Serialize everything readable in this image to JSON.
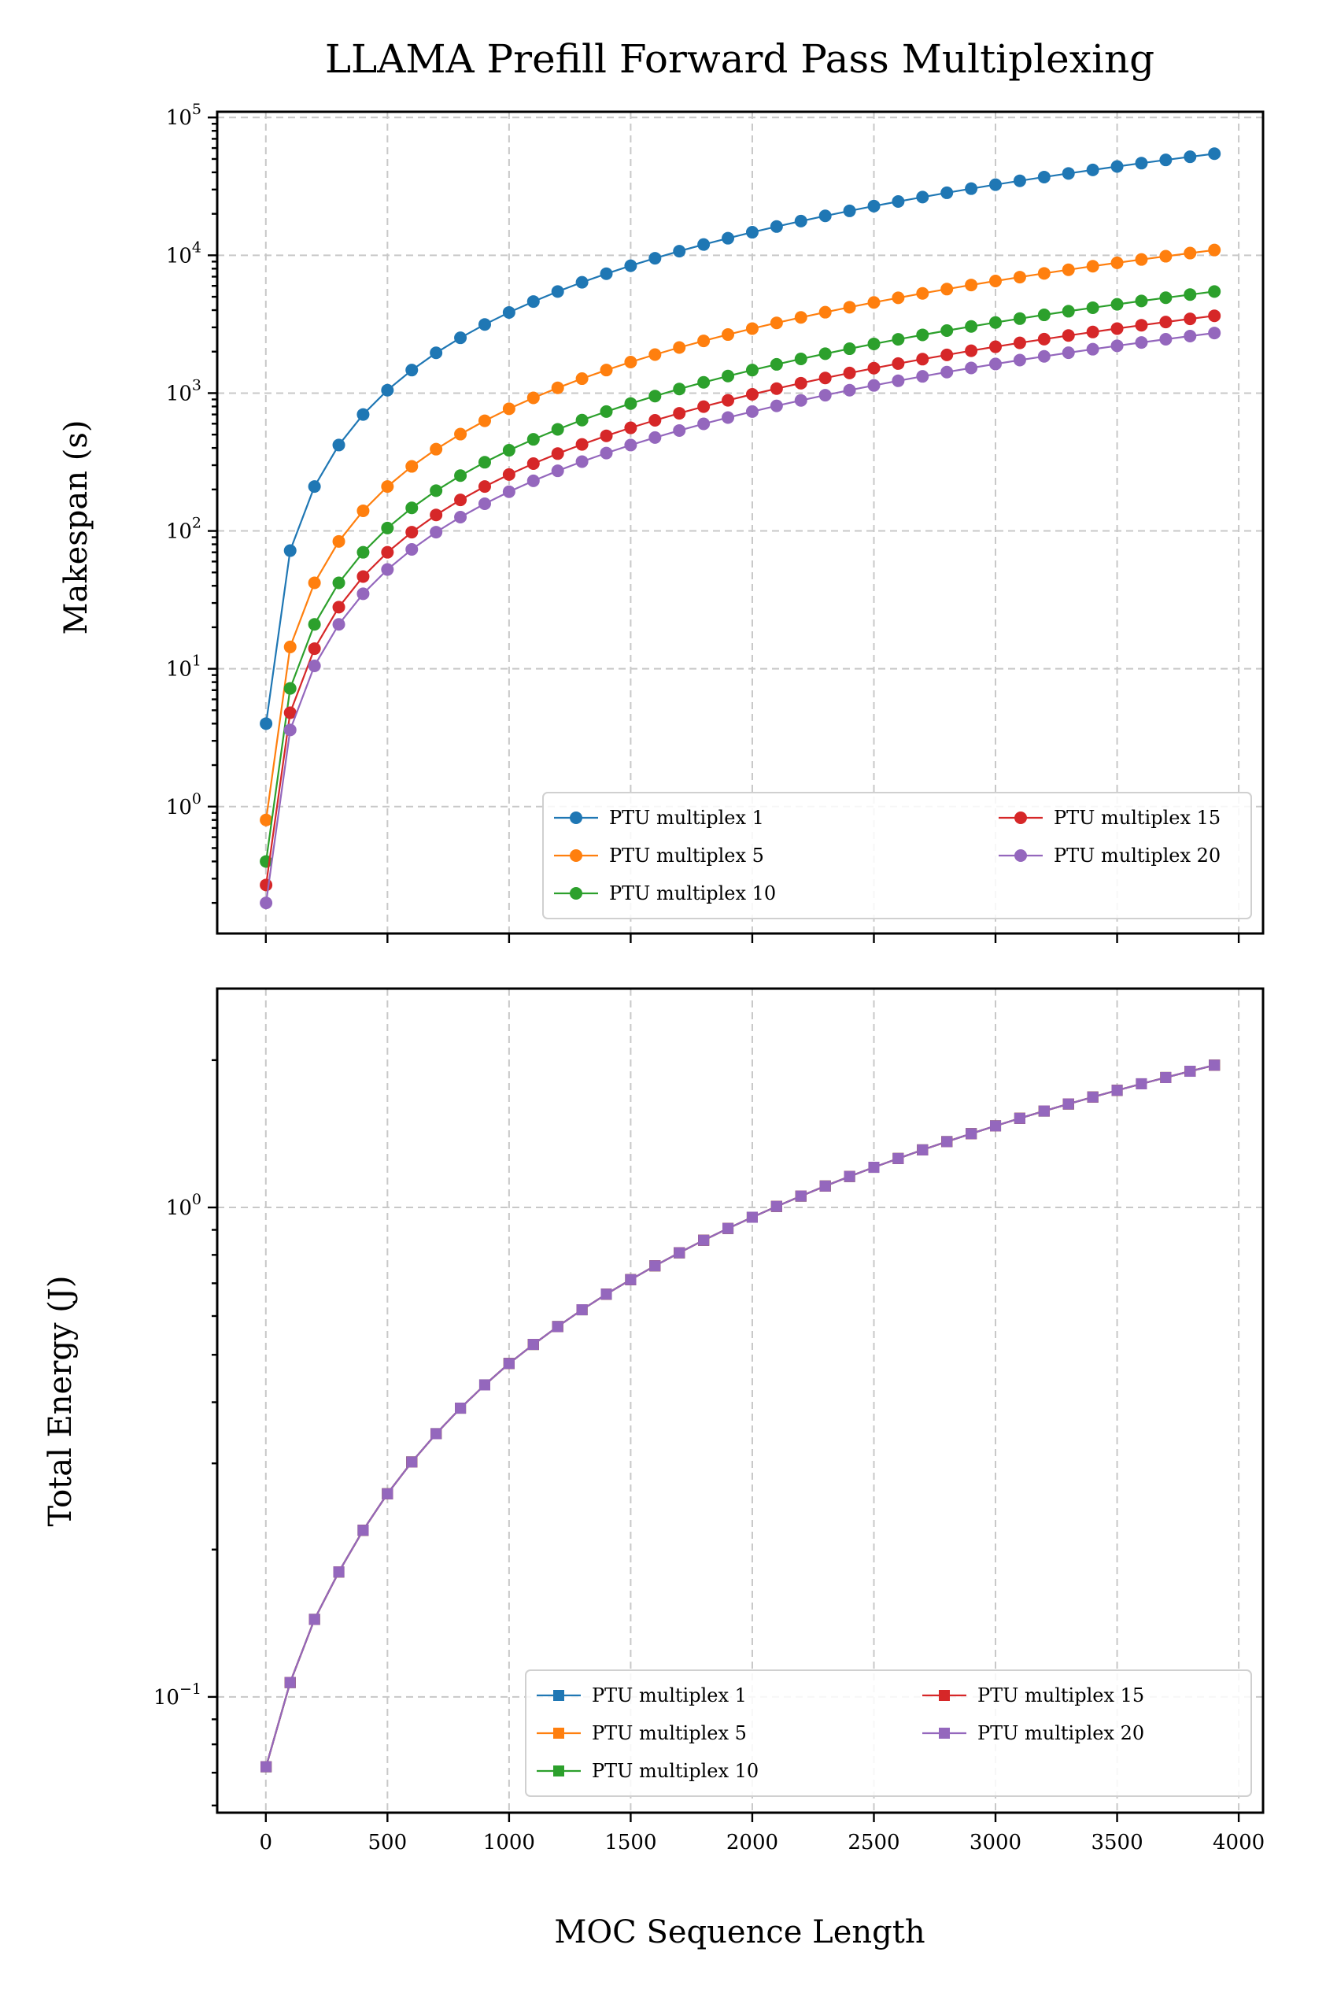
{
  "chart_data": [
    {
      "type": "line",
      "title": "LLAMA Prefill Forward Pass Multiplexing",
      "ylabel": "Makespan (s)",
      "xlabel": "",
      "yscale": "log",
      "ylim": [
        0.12,
        110000
      ],
      "xlim": [
        -200,
        4100
      ],
      "grid": true,
      "legend_position": "lower-right",
      "marker": "circle",
      "x_ticks": [
        0,
        500,
        1000,
        1500,
        2000,
        2500,
        3000,
        3500,
        4000
      ],
      "y_ticks": [
        {
          "value": 1,
          "base": "10",
          "exp": "0"
        },
        {
          "value": 10,
          "base": "10",
          "exp": "1"
        },
        {
          "value": 100,
          "base": "10",
          "exp": "2"
        },
        {
          "value": 1000,
          "base": "10",
          "exp": "3"
        },
        {
          "value": 10000,
          "base": "10",
          "exp": "4"
        },
        {
          "value": 100000,
          "base": "10",
          "exp": "5"
        }
      ],
      "x": [
        1,
        100,
        200,
        300,
        400,
        500,
        600,
        700,
        800,
        900,
        1000,
        1100,
        1200,
        1300,
        1400,
        1500,
        1600,
        1700,
        1800,
        1900,
        2000,
        2100,
        2200,
        2300,
        2400,
        2500,
        2600,
        2700,
        2800,
        2900,
        3000,
        3100,
        3200,
        3300,
        3400,
        3500,
        3600,
        3700,
        3800,
        3900
      ],
      "series": [
        {
          "name": "PTU multiplex 1",
          "color": "#1f77b4",
          "values": [
            4,
            72,
            210,
            420,
            700,
            1050,
            1470,
            1960,
            2520,
            3150,
            3850,
            4620,
            5460,
            6370,
            7350,
            8400,
            9520,
            10710,
            11970,
            13300,
            14700,
            16170,
            17710,
            19320,
            21000,
            22750,
            24570,
            26460,
            28420,
            30450,
            32550,
            34720,
            36960,
            39270,
            41650,
            44100,
            46620,
            49210,
            51870,
            54600
          ]
        },
        {
          "name": "PTU multiplex 5",
          "color": "#ff7f0e",
          "values": [
            0.8,
            14.4,
            42,
            84,
            140,
            210,
            294,
            392,
            504,
            630,
            770,
            924,
            1092,
            1274,
            1470,
            1680,
            1904,
            2142,
            2394,
            2660,
            2940,
            3234,
            3542,
            3864,
            4200,
            4550,
            4914,
            5292,
            5684,
            6090,
            6510,
            6944,
            7392,
            7854,
            8330,
            8820,
            9324,
            9842,
            10374,
            10920
          ]
        },
        {
          "name": "PTU multiplex 10",
          "color": "#2ca02c",
          "values": [
            0.4,
            7.2,
            21,
            42,
            70,
            105,
            147,
            196,
            252,
            315,
            385,
            462,
            546,
            637,
            735,
            840,
            952,
            1071,
            1197,
            1330,
            1470,
            1617,
            1771,
            1932,
            2100,
            2275,
            2457,
            2646,
            2842,
            3045,
            3255,
            3472,
            3696,
            3927,
            4165,
            4410,
            4662,
            4921,
            5187,
            5460
          ]
        },
        {
          "name": "PTU multiplex 15",
          "color": "#d62728",
          "values": [
            0.27,
            4.8,
            14,
            28,
            46.7,
            70,
            98,
            130.7,
            168,
            210,
            256.7,
            308,
            364,
            424.7,
            490,
            560,
            634.7,
            714,
            798,
            886.7,
            980,
            1078,
            1180.7,
            1288,
            1400,
            1516.7,
            1638,
            1764,
            1894.7,
            2030,
            2170,
            2314.7,
            2464,
            2618,
            2776.7,
            2940,
            3108,
            3280.7,
            3458,
            3640
          ]
        },
        {
          "name": "PTU multiplex 20",
          "color": "#9467bd",
          "values": [
            0.2,
            3.6,
            10.5,
            21,
            35,
            52.5,
            73.5,
            98,
            126,
            157.5,
            192.5,
            231,
            273,
            318.5,
            367.5,
            420,
            476,
            535.5,
            598.5,
            665,
            735,
            808.5,
            885.5,
            966,
            1050,
            1137.5,
            1228.5,
            1323,
            1421,
            1522.5,
            1627.5,
            1736,
            1848,
            1963.5,
            2082.5,
            2205,
            2331,
            2460.5,
            2593.5,
            2730
          ]
        }
      ]
    },
    {
      "type": "line",
      "title": "",
      "ylabel": "Total Energy (J)",
      "xlabel": "MOC Sequence Length",
      "yscale": "log",
      "ylim": [
        0.058,
        2.8
      ],
      "xlim": [
        -200,
        4100
      ],
      "grid": true,
      "legend_position": "lower-right",
      "marker": "square",
      "x_ticks": [
        0,
        500,
        1000,
        1500,
        2000,
        2500,
        3000,
        3500,
        4000
      ],
      "y_ticks": [
        {
          "value": 0.1,
          "base": "10",
          "exp": "−1"
        },
        {
          "value": 1,
          "base": "10",
          "exp": "0"
        }
      ],
      "x": [
        1,
        100,
        200,
        300,
        400,
        500,
        600,
        700,
        800,
        900,
        1000,
        1100,
        1200,
        1300,
        1400,
        1500,
        1600,
        1700,
        1800,
        1900,
        2000,
        2100,
        2200,
        2300,
        2400,
        2500,
        2600,
        2700,
        2800,
        2900,
        3000,
        3100,
        3200,
        3300,
        3400,
        3500,
        3600,
        3700,
        3800,
        3900
      ],
      "series_values_shared": [
        0.072,
        0.107,
        0.144,
        0.18,
        0.219,
        0.26,
        0.302,
        0.345,
        0.389,
        0.434,
        0.48,
        0.525,
        0.571,
        0.618,
        0.665,
        0.712,
        0.76,
        0.808,
        0.857,
        0.906,
        0.955,
        1.005,
        1.055,
        1.106,
        1.157,
        1.208,
        1.259,
        1.311,
        1.363,
        1.415,
        1.468,
        1.521,
        1.574,
        1.627,
        1.681,
        1.735,
        1.789,
        1.843,
        1.898,
        1.953
      ],
      "series": [
        {
          "name": "PTU multiplex  1",
          "color": "#1f77b4"
        },
        {
          "name": "PTU multiplex  5",
          "color": "#ff7f0e"
        },
        {
          "name": "PTU multiplex  10",
          "color": "#2ca02c"
        },
        {
          "name": "PTU multiplex  15",
          "color": "#d62728"
        },
        {
          "name": "PTU multiplex  20",
          "color": "#9467bd"
        }
      ]
    }
  ]
}
